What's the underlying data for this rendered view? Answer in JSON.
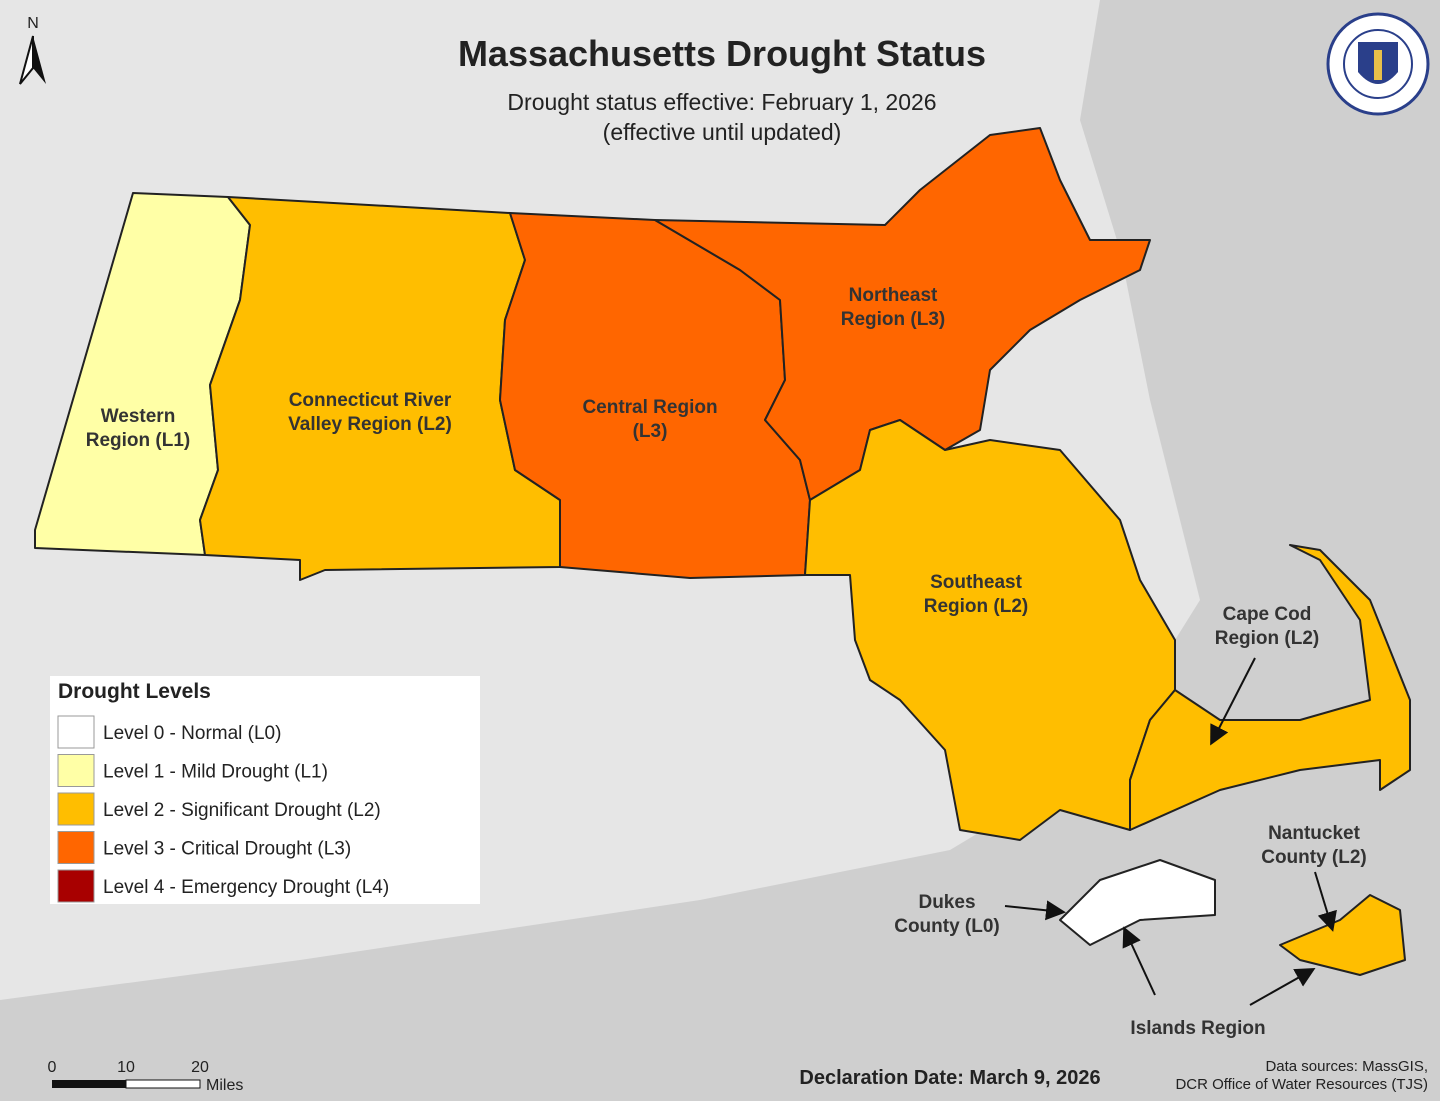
{
  "title": "Massachusetts Drought Status",
  "subtitle": "Drought status effective: February 1, 2026",
  "subtitle_note": "(effective until updated)",
  "north_label": "N",
  "regions": [
    {
      "label": [
        "Western",
        "Region (L1)"
      ],
      "color": "#ffffa6"
    },
    {
      "label": [
        "Connecticut River",
        "Valley Region (L2)"
      ],
      "color": "#ffbe00"
    },
    {
      "label": [
        "Central Region",
        "(L3)"
      ],
      "color": "#ff6600"
    },
    {
      "label": [
        "Northeast",
        "Region (L3)"
      ],
      "color": "#ff6600"
    },
    {
      "label": [
        "Southeast",
        "Region (L2)"
      ],
      "color": "#ffbe00"
    },
    {
      "label": [
        "Cape Cod",
        "Region (L2)"
      ],
      "color": "#ffbe00"
    },
    {
      "label": [
        "Dukes",
        "County (L0)"
      ],
      "color": "#ffffff"
    },
    {
      "label": [
        "Nantucket",
        "County (L2)"
      ],
      "color": "#ffbe00"
    }
  ],
  "islands_label": "Islands Region",
  "legend": {
    "title": "Drought Levels",
    "items": [
      {
        "label": "Level 0 - Normal (L0)",
        "color": "#ffffff"
      },
      {
        "label": "Level 1 - Mild Drought (L1)",
        "color": "#ffffa6"
      },
      {
        "label": "Level 2 - Significant Drought (L2)",
        "color": "#ffbe00"
      },
      {
        "label": "Level 3 - Critical Drought (L3)",
        "color": "#ff6600"
      },
      {
        "label": "Level 4 - Emergency Drought (L4)",
        "color": "#a80000"
      }
    ]
  },
  "scale_bar": {
    "ticks": [
      0,
      10,
      20
    ],
    "unit": "Miles"
  },
  "declaration": "Declaration Date: March 9, 2026",
  "sources": [
    "Data sources: MassGIS,",
    "DCR Office of Water Resources (TJS)"
  ]
}
